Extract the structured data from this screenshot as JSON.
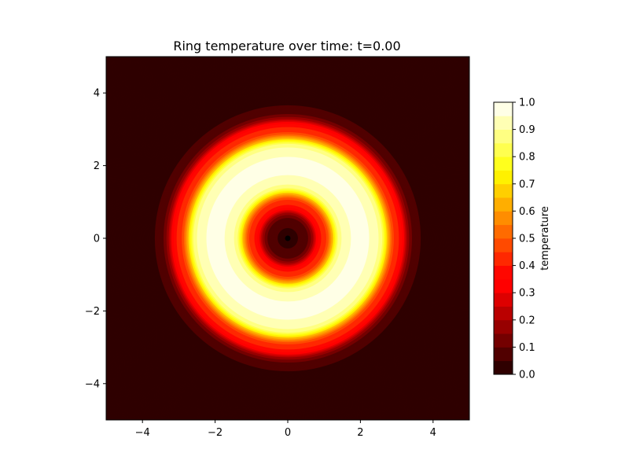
{
  "chart_data": {
    "type": "heatmap",
    "title": "Ring temperature over time: t=0.00",
    "xlabel": "",
    "ylabel": "",
    "xlim": [
      -5,
      5
    ],
    "ylim": [
      -5,
      5
    ],
    "x_ticks": [
      -4,
      -2,
      0,
      2,
      4
    ],
    "y_ticks": [
      -4,
      -2,
      0,
      2,
      4
    ],
    "x_tick_labels": [
      "−4",
      "−2",
      "0",
      "2",
      "4"
    ],
    "y_tick_labels": [
      "−4",
      "−2",
      "0",
      "2",
      "4"
    ],
    "grid": false,
    "colormap": "hot",
    "field": {
      "description_shape": "radial ring",
      "radial_profile": [
        {
          "r": 0.0,
          "value": 0.0
        },
        {
          "r": 0.5,
          "value": 0.08
        },
        {
          "r": 1.0,
          "value": 0.42
        },
        {
          "r": 1.5,
          "value": 0.9
        },
        {
          "r": 2.0,
          "value": 1.0
        },
        {
          "r": 2.5,
          "value": 0.9
        },
        {
          "r": 3.0,
          "value": 0.42
        },
        {
          "r": 3.5,
          "value": 0.08
        },
        {
          "r": 3.9,
          "value": 0.0
        },
        {
          "r": 7.1,
          "value": 0.0
        }
      ]
    },
    "colorbar": {
      "label": "temperature",
      "range": [
        0.0,
        1.0
      ],
      "ticks": [
        0.0,
        0.1,
        0.2,
        0.3,
        0.4,
        0.5,
        0.6,
        0.7,
        0.8,
        0.9,
        1.0
      ],
      "tick_labels": [
        "0.0",
        "0.1",
        "0.2",
        "0.3",
        "0.4",
        "0.5",
        "0.6",
        "0.7",
        "0.8",
        "0.9",
        "1.0"
      ],
      "levels": 20
    },
    "center_marker": {
      "x": 0,
      "y": 0,
      "color": "#000000"
    }
  }
}
